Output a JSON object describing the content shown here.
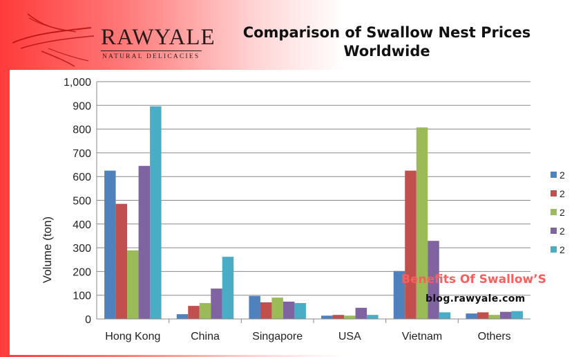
{
  "brand": {
    "name": "RAWYALE",
    "tagline": "NATURAL DELICACIES"
  },
  "page_title": "Comparison of Swallow Nest Prices Worldwide",
  "watermark": {
    "line1": "Benefits Of Swallow’S",
    "line2": "blog.rawyale.com"
  },
  "colors": {
    "series": [
      "#4f81bd",
      "#c0504d",
      "#9bbb59",
      "#8064a2",
      "#4bacc6"
    ],
    "gridline": "#878787",
    "accent": "#ff5c5c"
  },
  "chart_data": {
    "type": "bar",
    "title": "",
    "xlabel": "",
    "ylabel": "Volume (ton)",
    "categories": [
      "Hong Kong",
      "China",
      "Singapore",
      "USA",
      "Vietnam",
      "Others"
    ],
    "ylim": [
      0,
      1000
    ],
    "yticks": [
      "0",
      "100",
      "200",
      "300",
      "400",
      "500",
      "600",
      "700",
      "800",
      "900",
      "1,000"
    ],
    "grid": true,
    "legend_position": "right",
    "legend_labels": [
      "2",
      "2",
      "2",
      "2",
      "2"
    ],
    "series": [
      {
        "values": [
          625,
          20,
          97,
          14,
          202,
          23
        ]
      },
      {
        "values": [
          485,
          55,
          70,
          17,
          625,
          28
        ]
      },
      {
        "values": [
          289,
          67,
          90,
          14,
          807,
          17
        ]
      },
      {
        "values": [
          645,
          128,
          73,
          47,
          329,
          30
        ]
      },
      {
        "values": [
          896,
          262,
          67,
          17,
          28,
          33
        ]
      }
    ]
  }
}
